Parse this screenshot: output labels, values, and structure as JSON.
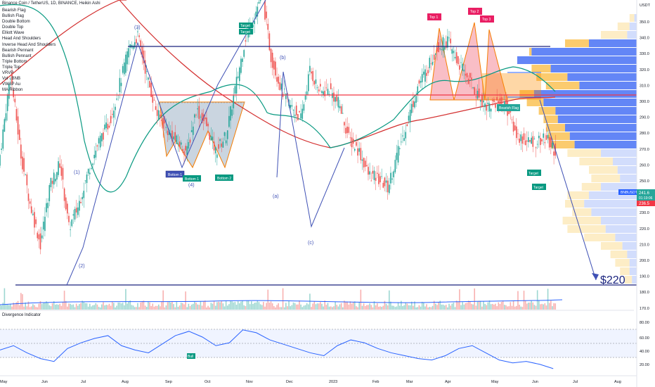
{
  "header": {
    "title": "Binance Coin / TetherUS, 1D, BINANCE, Heikin Ashi",
    "indicators": [
      "Bearish Flag",
      "Bullish Flag",
      "Double Bottom",
      "Double Top",
      "Elliott Wave",
      "Head And Shoulders",
      "Inverse Head And Shoulders",
      "Bearish Pennant",
      "Bullish Pennant",
      "Triple Bottom",
      "Triple Top",
      "VRVP",
      "Vol · BNB",
      "VWAP Au",
      "MA Ribbon"
    ]
  },
  "price_axis": {
    "currency": "USDT",
    "ticks": [
      "350.0",
      "340.0",
      "330.0",
      "320.0",
      "310.0",
      "300.0",
      "290.0",
      "280.0",
      "270.0",
      "260.0",
      "250.0",
      "240.0",
      "230.0",
      "220.0",
      "210.0",
      "200.0",
      "190.0",
      "180.0",
      "170.0"
    ],
    "symbol_tag": "BNBUSDT",
    "last_price": "241.6",
    "countdown": "01:19:06",
    "other_price": "236.5"
  },
  "time_axis": [
    "May",
    "Jun",
    "Jul",
    "Aug",
    "Sep",
    "Oct",
    "Nov",
    "Dec",
    "2023",
    "Feb",
    "Mar",
    "Apr",
    "May",
    "Jun",
    "Jul",
    "Aug"
  ],
  "annotations": {
    "target_label": "Target",
    "top1": "Top 1",
    "top2": "Top 2",
    "top3": "Top 3",
    "bottom1": "Bottom 1",
    "bottom1b": "Bottom 1",
    "bottom2": "Bottom 2",
    "bearish_flag": "Bearish Flag",
    "wave1": "(1)",
    "wave2": "(2)",
    "wave3": "(3)",
    "wave4": "(4)",
    "wave_a": "(a)",
    "wave_b": "(b)",
    "wave_c": "(c)",
    "price_target": "$220",
    "bull": "Bull"
  },
  "divergence": {
    "title": "Divergence Indicator",
    "ticks": [
      "80.00",
      "60.00",
      "40.00",
      "20.00"
    ]
  },
  "colors": {
    "up": "#26a69a",
    "down": "#ef5350",
    "blue_line": "#2962ff",
    "red_line": "#f23645",
    "ma_green": "#089981",
    "ma_red": "#d32f2f",
    "vrvp_blue": "#5b7ff5",
    "vrvp_orange": "#fbc866",
    "dt_red": "#f7a3ae",
    "db_gray": "#9fb2c7"
  },
  "chart_data": {
    "type": "candlestick",
    "price_range": [
      165,
      355
    ],
    "key_levels": [
      333,
      303,
      184
    ],
    "close_path": [
      [
        0,
        260
      ],
      [
        7,
        310
      ],
      [
        14,
        260
      ],
      [
        20,
        230
      ],
      [
        27,
        205
      ],
      [
        33,
        240
      ],
      [
        40,
        255
      ],
      [
        46,
        215
      ],
      [
        52,
        228
      ],
      [
        59,
        250
      ],
      [
        66,
        268
      ],
      [
        73,
        280
      ],
      [
        79,
        300
      ],
      [
        86,
        325
      ],
      [
        92,
        333
      ],
      [
        99,
        305
      ],
      [
        105,
        285
      ],
      [
        112,
        275
      ],
      [
        118,
        268
      ],
      [
        125,
        262
      ],
      [
        131,
        288
      ],
      [
        138,
        278
      ],
      [
        144,
        262
      ],
      [
        151,
        272
      ],
      [
        157,
        300
      ],
      [
        164,
        332
      ],
      [
        170,
        345
      ],
      [
        175,
        360
      ],
      [
        181,
        320
      ],
      [
        188,
        300
      ],
      [
        194,
        290
      ],
      [
        201,
        282
      ],
      [
        207,
        312
      ],
      [
        214,
        298
      ],
      [
        220,
        300
      ],
      [
        227,
        290
      ],
      [
        233,
        270
      ],
      [
        240,
        262
      ],
      [
        246,
        248
      ],
      [
        253,
        245
      ],
      [
        259,
        240
      ],
      [
        266,
        262
      ],
      [
        272,
        280
      ],
      [
        279,
        302
      ],
      [
        285,
        312
      ],
      [
        292,
        326
      ],
      [
        299,
        330
      ],
      [
        305,
        318
      ],
      [
        312,
        308
      ],
      [
        318,
        298
      ],
      [
        325,
        290
      ],
      [
        332,
        292
      ],
      [
        338,
        290
      ],
      [
        345,
        272
      ],
      [
        352,
        268
      ],
      [
        358,
        268
      ],
      [
        365,
        270
      ],
      [
        371,
        262
      ]
    ],
    "divergence_path": [
      [
        0,
        42
      ],
      [
        6,
        48
      ],
      [
        12,
        38
      ],
      [
        18,
        30
      ],
      [
        24,
        26
      ],
      [
        30,
        44
      ],
      [
        36,
        52
      ],
      [
        42,
        58
      ],
      [
        48,
        62
      ],
      [
        54,
        48
      ],
      [
        60,
        42
      ],
      [
        66,
        38
      ],
      [
        72,
        50
      ],
      [
        78,
        62
      ],
      [
        84,
        68
      ],
      [
        90,
        60
      ],
      [
        96,
        48
      ],
      [
        102,
        52
      ],
      [
        108,
        70
      ],
      [
        114,
        66
      ],
      [
        120,
        56
      ],
      [
        126,
        50
      ],
      [
        132,
        44
      ],
      [
        138,
        38
      ],
      [
        144,
        34
      ],
      [
        150,
        48
      ],
      [
        156,
        56
      ],
      [
        162,
        52
      ],
      [
        168,
        44
      ],
      [
        174,
        38
      ],
      [
        180,
        34
      ],
      [
        186,
        30
      ],
      [
        192,
        28
      ],
      [
        198,
        34
      ],
      [
        204,
        44
      ],
      [
        210,
        48
      ],
      [
        216,
        38
      ],
      [
        222,
        28
      ],
      [
        228,
        24
      ],
      [
        234,
        26
      ],
      [
        240,
        22
      ],
      [
        246,
        16
      ]
    ]
  }
}
